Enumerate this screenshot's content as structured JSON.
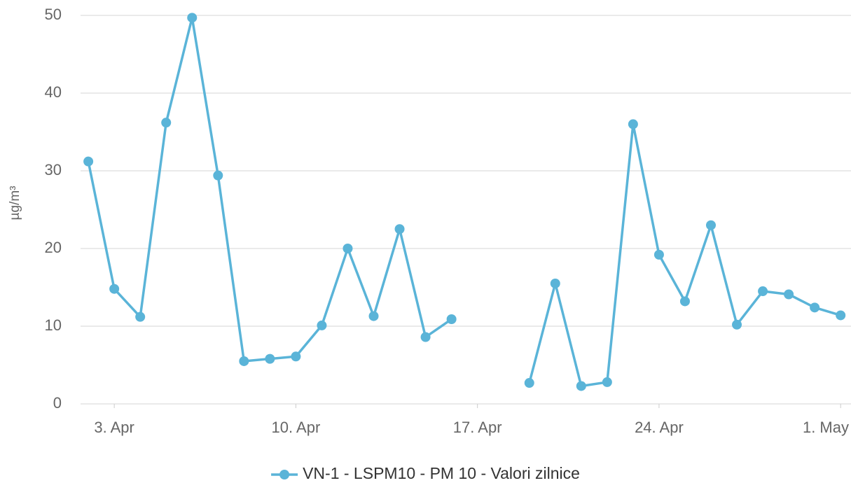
{
  "chart_data": {
    "type": "line",
    "y_label": "µg/m³",
    "x": [
      2,
      3,
      4,
      5,
      6,
      7,
      8,
      9,
      10,
      11,
      12,
      13,
      14,
      15,
      16,
      17,
      18,
      19,
      20,
      21,
      22,
      23,
      24,
      25,
      26,
      27,
      28,
      29,
      30,
      31
    ],
    "series": [
      {
        "name": "VN-1 - LSPM10 - PM 10 - Valori zilnice",
        "color": "#5ab4d8",
        "values": [
          31.2,
          14.8,
          11.2,
          36.2,
          49.7,
          29.4,
          5.5,
          5.8,
          6.1,
          10.1,
          20.0,
          11.3,
          22.5,
          8.6,
          10.9,
          null,
          null,
          2.7,
          15.5,
          2.3,
          2.8,
          36.0,
          19.2,
          13.2,
          23.0,
          10.2,
          14.5,
          14.1,
          12.4,
          11.4
        ]
      }
    ],
    "xlim": [
      1.7,
      31.4
    ],
    "xticks": [
      {
        "value": 3,
        "label": "3. Apr"
      },
      {
        "value": 10,
        "label": "10. Apr"
      },
      {
        "value": 17,
        "label": "17. Apr"
      },
      {
        "value": 24,
        "label": "24. Apr"
      },
      {
        "value": 31,
        "label": "1. May"
      }
    ],
    "ylim": [
      0,
      50
    ],
    "yticks": [
      0,
      10,
      20,
      30,
      40,
      50
    ],
    "grid": true,
    "legend": "bottom"
  }
}
